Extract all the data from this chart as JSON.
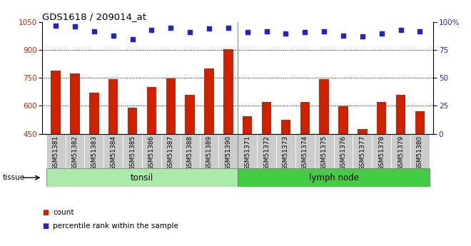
{
  "title": "GDS1618 / 209014_at",
  "categories": [
    "GSM51381",
    "GSM51382",
    "GSM51383",
    "GSM51384",
    "GSM51385",
    "GSM51386",
    "GSM51387",
    "GSM51388",
    "GSM51389",
    "GSM51390",
    "GSM51371",
    "GSM51372",
    "GSM51373",
    "GSM51374",
    "GSM51375",
    "GSM51376",
    "GSM51377",
    "GSM51378",
    "GSM51379",
    "GSM51380"
  ],
  "counts": [
    790,
    775,
    670,
    745,
    590,
    700,
    748,
    660,
    800,
    905,
    545,
    620,
    525,
    620,
    745,
    598,
    475,
    620,
    660,
    573
  ],
  "percentile": [
    97,
    96,
    92,
    88,
    85,
    93,
    95,
    91,
    94,
    95,
    91,
    92,
    90,
    91,
    92,
    88,
    87,
    90,
    93,
    92
  ],
  "bar_color": "#cc2200",
  "dot_color": "#2222cc",
  "ylim_left": [
    450,
    1050
  ],
  "ylim_right": [
    0,
    100
  ],
  "yticks_left": [
    450,
    600,
    750,
    900,
    1050
  ],
  "yticks_right": [
    0,
    25,
    50,
    75,
    100
  ],
  "grid_values": [
    600,
    750,
    900
  ],
  "tissue_groups": [
    {
      "label": "tonsil",
      "start": 0,
      "end": 10,
      "color": "#aaeaaa"
    },
    {
      "label": "lymph node",
      "start": 10,
      "end": 20,
      "color": "#44cc44"
    }
  ],
  "legend_count_label": "count",
  "legend_pct_label": "percentile rank within the sample",
  "tissue_label": "tissue",
  "plot_bg_color": "#ffffff",
  "xtick_bg_color": "#cccccc"
}
